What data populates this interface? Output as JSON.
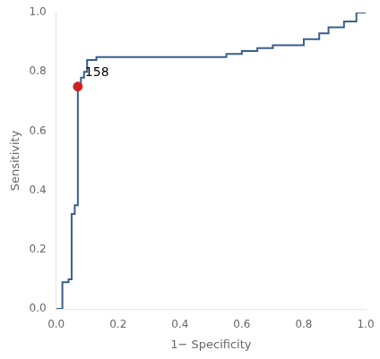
{
  "chart_data": {
    "type": "line",
    "xlabel": "1− Specificity",
    "ylabel": "Sensitivity",
    "series": [
      {
        "type": "line",
        "color": "#3a5f8a",
        "marker": "none",
        "line_style": "solid",
        "x": [
          0.0,
          0.0,
          0.02,
          0.02,
          0.04,
          0.04,
          0.05,
          0.05,
          0.06,
          0.06,
          0.07,
          0.07,
          0.08,
          0.08,
          0.09,
          0.09,
          0.1,
          0.1,
          0.13,
          0.13,
          0.15,
          0.15,
          0.17,
          0.17,
          0.2,
          0.2,
          0.25,
          0.25,
          0.55,
          0.55,
          0.6,
          0.6,
          0.65,
          0.65,
          0.7,
          0.7,
          0.8,
          0.8,
          0.85,
          0.85,
          0.88,
          0.88,
          0.93,
          0.93,
          0.97,
          0.97,
          1.0
        ],
        "values": [
          0.0,
          0.0,
          0.0,
          0.09,
          0.09,
          0.1,
          0.1,
          0.32,
          0.32,
          0.35,
          0.35,
          0.75,
          0.75,
          0.78,
          0.78,
          0.8,
          0.8,
          0.84,
          0.84,
          0.85,
          0.85,
          0.85,
          0.85,
          0.85,
          0.85,
          0.85,
          0.85,
          0.85,
          0.85,
          0.86,
          0.86,
          0.87,
          0.87,
          0.88,
          0.88,
          0.89,
          0.89,
          0.91,
          0.91,
          0.93,
          0.93,
          0.95,
          0.95,
          0.97,
          0.97,
          1.0,
          1.0
        ]
      },
      {
        "type": "scatter",
        "color": "#cc2222",
        "marker": "circle",
        "line_style": "none",
        "x": [
          0.07
        ],
        "values": [
          0.75
        ]
      }
    ],
    "annotations": [
      {
        "text": "158",
        "x": 0.07,
        "y": 0.75
      }
    ],
    "xlim": [
      0.0,
      1.0
    ],
    "ylim": [
      0.0,
      1.0
    ],
    "xticks": [
      {
        "value": 0.0,
        "label": "0.0"
      },
      0.2,
      0.4,
      0.6,
      0.8,
      {
        "value": 1.0,
        "label": "1.0"
      }
    ],
    "yticks": [
      {
        "value": 0.0,
        "label": "0.0"
      },
      0.2,
      0.4,
      0.6,
      0.8,
      {
        "value": 1.0,
        "label": "1.0"
      }
    ],
    "grid": false
  }
}
